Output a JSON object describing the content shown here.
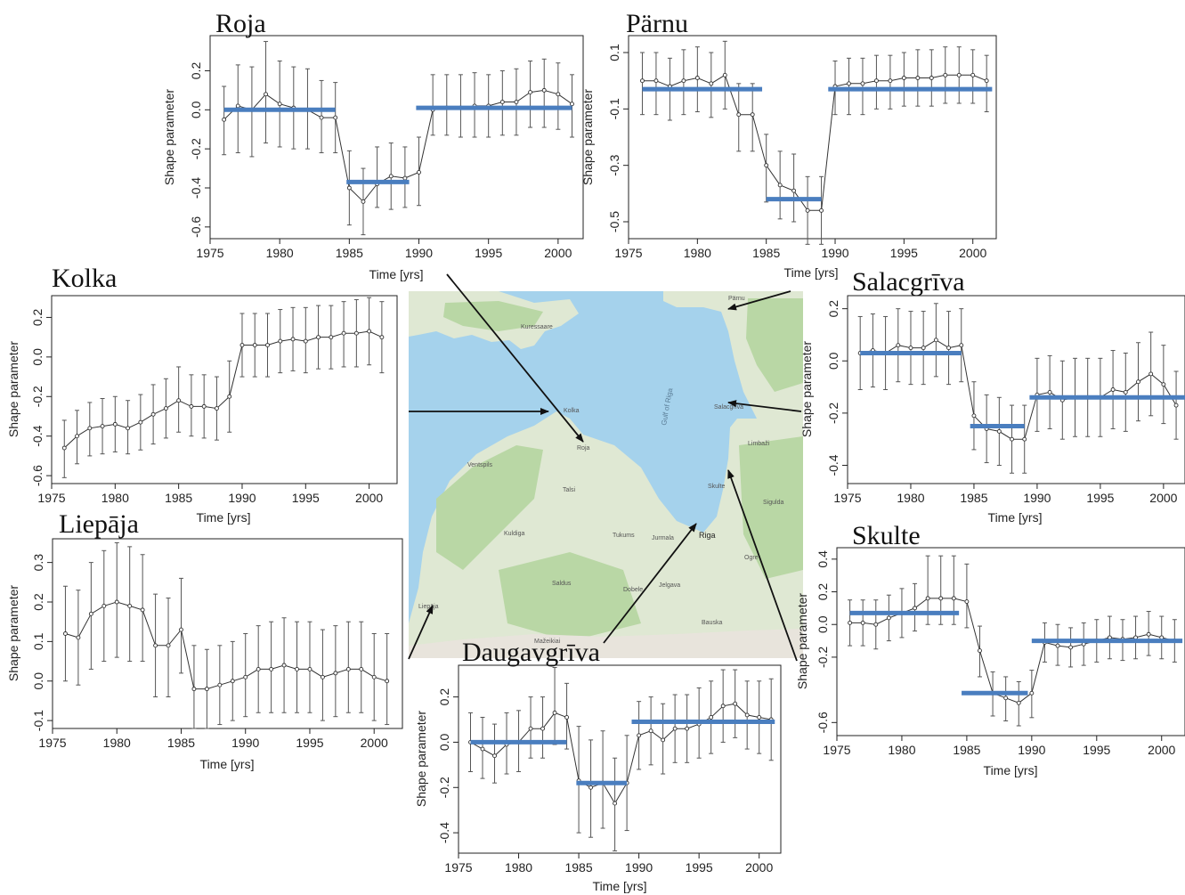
{
  "colors": {
    "segment": "#4a7ebf",
    "line": "#333333",
    "axis": "#222222",
    "sea": "#a5d2ec",
    "land": "#dfe8d3",
    "forest": "#b9d7a5"
  },
  "panel_xlabel": "Time [yrs]",
  "panel_ylabel": "Shape parameter",
  "map": {
    "labels": {
      "gulf": "Gulf of Riga",
      "riga": "Riga",
      "liepaja": "Liepāja",
      "ventspils": "Ventspils",
      "kuressaare": "Kuressaare",
      "jurmala": "Jurmala",
      "jelgava": "Jelgava",
      "saldus": "Saldus",
      "kuldiga": "Kuldiga",
      "talsi": "Talsi",
      "mazeikiai": "Mažeikiai",
      "bauska": "Bauska",
      "sigulda": "Sigulda",
      "limbazi": "Limbaži",
      "ogre": "Ogre",
      "dobele": "Dobele",
      "tukums": "Tukums",
      "kolka": "Kolka",
      "roja": "Roja",
      "salacgriva": "Salacgrīva",
      "skulte": "Skulte",
      "parnu": "Pärnu"
    }
  },
  "chart_data": [
    {
      "id": "roja",
      "type": "line",
      "title": "Roja",
      "xlabel": "Time [yrs]",
      "ylabel": "Shape parameter",
      "xlim": [
        1975,
        2001.8
      ],
      "ylim": [
        -0.66,
        0.38
      ],
      "xticks": [
        1975,
        1980,
        1985,
        1990,
        1995,
        2000
      ],
      "yticks": [
        -0.6,
        -0.4,
        -0.2,
        0.0,
        0.2
      ],
      "ytick_labels": [
        "-0.6",
        "-0.4",
        "-0.2",
        "0.0",
        "0.2"
      ],
      "x": [
        1976,
        1977,
        1978,
        1979,
        1980,
        1981,
        1982,
        1983,
        1984,
        1985,
        1986,
        1987,
        1988,
        1989,
        1990,
        1991,
        1992,
        1993,
        1994,
        1995,
        1996,
        1997,
        1998,
        1999,
        2000,
        2001
      ],
      "y": [
        -0.05,
        0.02,
        0.0,
        0.08,
        0.03,
        0.01,
        0.0,
        -0.04,
        -0.04,
        -0.4,
        -0.47,
        -0.38,
        -0.34,
        -0.35,
        -0.32,
        0.0,
        0.01,
        0.01,
        0.02,
        0.02,
        0.04,
        0.04,
        0.09,
        0.1,
        0.08,
        0.03
      ],
      "lower": [
        -0.23,
        -0.22,
        -0.24,
        -0.17,
        -0.19,
        -0.2,
        -0.2,
        -0.22,
        -0.22,
        -0.59,
        -0.64,
        -0.5,
        -0.51,
        -0.5,
        -0.49,
        -0.13,
        -0.13,
        -0.14,
        -0.14,
        -0.14,
        -0.13,
        -0.13,
        -0.09,
        -0.09,
        -0.1,
        -0.14
      ],
      "upper": [
        0.12,
        0.23,
        0.22,
        0.35,
        0.25,
        0.22,
        0.21,
        0.15,
        0.14,
        -0.21,
        -0.3,
        -0.19,
        -0.17,
        -0.19,
        -0.14,
        0.18,
        0.18,
        0.18,
        0.19,
        0.18,
        0.2,
        0.21,
        0.25,
        0.26,
        0.24,
        0.18
      ],
      "segments": [
        {
          "x0": 1976,
          "x1": 1984,
          "y": 0.0
        },
        {
          "x0": 1984.8,
          "x1": 1989.3,
          "y": -0.37
        },
        {
          "x0": 1989.8,
          "x1": 2001,
          "y": 0.01
        }
      ]
    },
    {
      "id": "parnu",
      "type": "line",
      "title": "Pärnu",
      "xlabel": "Time [yrs]",
      "ylabel": "Shape parameter",
      "xlim": [
        1975,
        2001.7
      ],
      "ylim": [
        -0.56,
        0.16
      ],
      "xticks": [
        1975,
        1980,
        1985,
        1990,
        1995,
        2000
      ],
      "yticks": [
        -0.5,
        -0.3,
        -0.1,
        0.1
      ],
      "ytick_labels": [
        "-0.5",
        "-0.3",
        "-0.1",
        "0.1"
      ],
      "x": [
        1976,
        1977,
        1978,
        1979,
        1980,
        1981,
        1982,
        1983,
        1984,
        1985,
        1986,
        1987,
        1988,
        1989,
        1990,
        1991,
        1992,
        1993,
        1994,
        1995,
        1996,
        1997,
        1998,
        1999,
        2000,
        2001
      ],
      "y": [
        0.0,
        0.0,
        -0.02,
        0.0,
        0.01,
        -0.01,
        0.02,
        -0.12,
        -0.12,
        -0.3,
        -0.37,
        -0.39,
        -0.46,
        -0.46,
        -0.02,
        -0.01,
        -0.01,
        0.0,
        0.0,
        0.01,
        0.01,
        0.01,
        0.02,
        0.02,
        0.02,
        0.0
      ],
      "lower": [
        -0.12,
        -0.12,
        -0.14,
        -0.12,
        -0.11,
        -0.13,
        -0.1,
        -0.25,
        -0.25,
        -0.43,
        -0.49,
        -0.5,
        -0.58,
        -0.58,
        -0.12,
        -0.12,
        -0.12,
        -0.1,
        -0.1,
        -0.09,
        -0.09,
        -0.09,
        -0.08,
        -0.08,
        -0.08,
        -0.11
      ],
      "upper": [
        0.1,
        0.1,
        0.08,
        0.11,
        0.12,
        0.1,
        0.14,
        -0.01,
        -0.01,
        -0.19,
        -0.25,
        -0.26,
        -0.34,
        -0.34,
        0.07,
        0.08,
        0.08,
        0.09,
        0.09,
        0.1,
        0.11,
        0.11,
        0.12,
        0.12,
        0.11,
        0.09
      ],
      "segments": [
        {
          "x0": 1976,
          "x1": 1984.7,
          "y": -0.03
        },
        {
          "x0": 1985,
          "x1": 1989,
          "y": -0.42
        },
        {
          "x0": 1989.5,
          "x1": 2001.4,
          "y": -0.03
        }
      ]
    },
    {
      "id": "kolka",
      "type": "line",
      "title": "Kolka",
      "xlabel": "Time [yrs]",
      "ylabel": "Shape parameter",
      "xlim": [
        1975,
        2002.2
      ],
      "ylim": [
        -0.64,
        0.31
      ],
      "xticks": [
        1975,
        1980,
        1985,
        1990,
        1995,
        2000
      ],
      "yticks": [
        -0.6,
        -0.4,
        -0.2,
        0.0,
        0.2
      ],
      "ytick_labels": [
        "-0.6",
        "-0.4",
        "-0.2",
        "0.0",
        "0.2"
      ],
      "x": [
        1976,
        1977,
        1978,
        1979,
        1980,
        1981,
        1982,
        1983,
        1984,
        1985,
        1986,
        1987,
        1988,
        1989,
        1990,
        1991,
        1992,
        1993,
        1994,
        1995,
        1996,
        1997,
        1998,
        1999,
        2000,
        2001
      ],
      "y": [
        -0.46,
        -0.4,
        -0.36,
        -0.35,
        -0.34,
        -0.36,
        -0.33,
        -0.29,
        -0.26,
        -0.22,
        -0.25,
        -0.25,
        -0.26,
        -0.2,
        0.06,
        0.06,
        0.06,
        0.08,
        0.09,
        0.08,
        0.1,
        0.1,
        0.12,
        0.12,
        0.13,
        0.1
      ],
      "lower": [
        -0.61,
        -0.54,
        -0.5,
        -0.49,
        -0.48,
        -0.49,
        -0.47,
        -0.44,
        -0.41,
        -0.38,
        -0.4,
        -0.41,
        -0.42,
        -0.38,
        -0.1,
        -0.1,
        -0.1,
        -0.08,
        -0.07,
        -0.08,
        -0.06,
        -0.06,
        -0.05,
        -0.05,
        -0.04,
        -0.08
      ],
      "upper": [
        -0.32,
        -0.27,
        -0.23,
        -0.21,
        -0.2,
        -0.22,
        -0.19,
        -0.14,
        -0.11,
        -0.05,
        -0.09,
        -0.09,
        -0.1,
        -0.02,
        0.22,
        0.22,
        0.22,
        0.24,
        0.25,
        0.25,
        0.26,
        0.26,
        0.28,
        0.29,
        0.3,
        0.28
      ],
      "segments": []
    },
    {
      "id": "salacgriva",
      "type": "line",
      "title": "Salacgrīva",
      "xlabel": "Time [yrs]",
      "ylabel": "Shape parameter",
      "xlim": [
        1975,
        2001.7
      ],
      "ylim": [
        -0.47,
        0.25
      ],
      "xticks": [
        1975,
        1980,
        1985,
        1990,
        1995,
        2000
      ],
      "yticks": [
        -0.4,
        -0.2,
        0.0,
        0.2
      ],
      "ytick_labels": [
        "-0.4",
        "-0.2",
        "0.0",
        "0.2"
      ],
      "x": [
        1976,
        1977,
        1978,
        1979,
        1980,
        1981,
        1982,
        1983,
        1984,
        1985,
        1986,
        1987,
        1988,
        1989,
        1990,
        1991,
        1992,
        1993,
        1994,
        1995,
        1996,
        1997,
        1998,
        1999,
        2000,
        2001
      ],
      "y": [
        0.03,
        0.04,
        0.03,
        0.06,
        0.05,
        0.05,
        0.08,
        0.05,
        0.06,
        -0.21,
        -0.26,
        -0.27,
        -0.3,
        -0.3,
        -0.13,
        -0.12,
        -0.15,
        -0.14,
        -0.14,
        -0.14,
        -0.11,
        -0.12,
        -0.08,
        -0.05,
        -0.09,
        -0.17
      ],
      "lower": [
        -0.11,
        -0.1,
        -0.11,
        -0.08,
        -0.09,
        -0.09,
        -0.06,
        -0.09,
        -0.08,
        -0.34,
        -0.39,
        -0.4,
        -0.43,
        -0.43,
        -0.27,
        -0.26,
        -0.3,
        -0.29,
        -0.29,
        -0.29,
        -0.26,
        -0.27,
        -0.23,
        -0.21,
        -0.24,
        -0.3
      ],
      "upper": [
        0.17,
        0.18,
        0.17,
        0.2,
        0.19,
        0.19,
        0.22,
        0.19,
        0.2,
        -0.08,
        -0.13,
        -0.14,
        -0.17,
        -0.17,
        0.01,
        0.02,
        0.0,
        0.01,
        0.01,
        0.01,
        0.04,
        0.03,
        0.07,
        0.11,
        0.06,
        -0.04
      ],
      "segments": [
        {
          "x0": 1976,
          "x1": 1984,
          "y": 0.03
        },
        {
          "x0": 1984.7,
          "x1": 1989,
          "y": -0.25
        },
        {
          "x0": 1989.4,
          "x1": 2001.7,
          "y": -0.14
        }
      ]
    },
    {
      "id": "liepaja",
      "type": "line",
      "title": "Liepāja",
      "xlabel": "Time [yrs]",
      "ylabel": "Shape parameter",
      "xlim": [
        1975,
        2002.2
      ],
      "ylim": [
        -0.12,
        0.36
      ],
      "xticks": [
        1975,
        1980,
        1985,
        1990,
        1995,
        2000
      ],
      "yticks": [
        -0.1,
        0.0,
        0.1,
        0.2,
        0.3
      ],
      "ytick_labels": [
        "-0.1",
        "0.0",
        "0.1",
        "0.2",
        "0.3"
      ],
      "x": [
        1976,
        1977,
        1978,
        1979,
        1980,
        1981,
        1982,
        1983,
        1984,
        1985,
        1986,
        1987,
        1988,
        1989,
        1990,
        1991,
        1992,
        1993,
        1994,
        1995,
        1996,
        1997,
        1998,
        1999,
        2000,
        2001
      ],
      "y": [
        0.12,
        0.11,
        0.17,
        0.19,
        0.2,
        0.19,
        0.18,
        0.09,
        0.09,
        0.13,
        -0.02,
        -0.02,
        -0.01,
        0.0,
        0.01,
        0.03,
        0.03,
        0.04,
        0.03,
        0.03,
        0.01,
        0.02,
        0.03,
        0.03,
        0.01,
        0.0
      ],
      "lower": [
        0.0,
        -0.01,
        0.03,
        0.05,
        0.06,
        0.05,
        0.05,
        -0.04,
        -0.04,
        0.02,
        -0.12,
        -0.12,
        -0.11,
        -0.1,
        -0.09,
        -0.08,
        -0.08,
        -0.08,
        -0.08,
        -0.08,
        -0.1,
        -0.09,
        -0.08,
        -0.08,
        -0.1,
        -0.11
      ],
      "upper": [
        0.24,
        0.23,
        0.3,
        0.33,
        0.35,
        0.34,
        0.32,
        0.22,
        0.21,
        0.26,
        0.09,
        0.08,
        0.09,
        0.1,
        0.12,
        0.14,
        0.15,
        0.16,
        0.15,
        0.15,
        0.13,
        0.14,
        0.15,
        0.15,
        0.12,
        0.12
      ],
      "segments": []
    },
    {
      "id": "skulte",
      "type": "line",
      "title": "Skulte",
      "xlabel": "Time [yrs]",
      "ylabel": "Shape parameter",
      "xlim": [
        1975,
        2001.8
      ],
      "ylim": [
        -0.68,
        0.47
      ],
      "xticks": [
        1975,
        1980,
        1985,
        1990,
        1995,
        2000
      ],
      "yticks": [
        -0.6,
        -0.2,
        0.0,
        0.2,
        0.4
      ],
      "ytick_labels": [
        "-0.6",
        "-0.2",
        "0.0",
        "0.2",
        "0.4"
      ],
      "x": [
        1976,
        1977,
        1978,
        1979,
        1980,
        1981,
        1982,
        1983,
        1984,
        1985,
        1986,
        1987,
        1988,
        1989,
        1990,
        1991,
        1992,
        1993,
        1994,
        1995,
        1996,
        1997,
        1998,
        1999,
        2000,
        2001
      ],
      "y": [
        0.01,
        0.01,
        0.0,
        0.04,
        0.07,
        0.1,
        0.16,
        0.16,
        0.16,
        0.14,
        -0.16,
        -0.42,
        -0.45,
        -0.48,
        -0.42,
        -0.11,
        -0.13,
        -0.14,
        -0.12,
        -0.1,
        -0.08,
        -0.09,
        -0.08,
        -0.06,
        -0.08,
        -0.1
      ],
      "lower": [
        -0.13,
        -0.13,
        -0.15,
        -0.1,
        -0.08,
        -0.04,
        0.0,
        0.0,
        0.0,
        -0.02,
        -0.32,
        -0.56,
        -0.59,
        -0.62,
        -0.57,
        -0.23,
        -0.25,
        -0.26,
        -0.25,
        -0.23,
        -0.21,
        -0.22,
        -0.21,
        -0.19,
        -0.21,
        -0.23
      ],
      "upper": [
        0.15,
        0.15,
        0.15,
        0.18,
        0.22,
        0.25,
        0.42,
        0.42,
        0.42,
        0.37,
        -0.01,
        -0.29,
        -0.32,
        -0.35,
        -0.28,
        0.01,
        0.0,
        -0.02,
        0.01,
        0.03,
        0.05,
        0.03,
        0.05,
        0.08,
        0.05,
        0.03
      ],
      "segments": [
        {
          "x0": 1976,
          "x1": 1984.4,
          "y": 0.07
        },
        {
          "x0": 1984.6,
          "x1": 1989.7,
          "y": -0.42
        },
        {
          "x0": 1990,
          "x1": 2001.6,
          "y": -0.1
        }
      ]
    },
    {
      "id": "daugavgriva",
      "type": "line",
      "title": "Daugavgrīva",
      "xlabel": "Time [yrs]",
      "ylabel": "Shape parameter",
      "xlim": [
        1975,
        2001.8
      ],
      "ylim": [
        -0.49,
        0.34
      ],
      "xticks": [
        1975,
        1980,
        1985,
        1990,
        1995,
        2000
      ],
      "yticks": [
        -0.4,
        -0.2,
        0.0,
        0.2
      ],
      "ytick_labels": [
        "-0.4",
        "-0.2",
        "0.0",
        "0.2"
      ],
      "x": [
        1976,
        1977,
        1978,
        1979,
        1980,
        1981,
        1982,
        1983,
        1984,
        1985,
        1986,
        1987,
        1988,
        1989,
        1990,
        1991,
        1992,
        1993,
        1994,
        1995,
        1996,
        1997,
        1998,
        1999,
        2000,
        2001
      ],
      "y": [
        0.0,
        -0.03,
        -0.06,
        -0.01,
        0.0,
        0.06,
        0.06,
        0.13,
        0.11,
        -0.17,
        -0.2,
        -0.18,
        -0.27,
        -0.18,
        0.03,
        0.05,
        0.01,
        0.06,
        0.06,
        0.08,
        0.11,
        0.16,
        0.17,
        0.12,
        0.11,
        0.1
      ],
      "lower": [
        -0.13,
        -0.16,
        -0.18,
        -0.14,
        -0.13,
        -0.07,
        -0.07,
        -0.01,
        -0.03,
        -0.4,
        -0.42,
        -0.38,
        -0.48,
        -0.39,
        -0.12,
        -0.1,
        -0.14,
        -0.09,
        -0.09,
        -0.07,
        -0.05,
        0.0,
        0.02,
        -0.03,
        -0.05,
        -0.08
      ],
      "upper": [
        0.13,
        0.11,
        0.08,
        0.13,
        0.14,
        0.2,
        0.2,
        0.33,
        0.26,
        0.07,
        0.01,
        0.05,
        -0.07,
        0.03,
        0.18,
        0.2,
        0.17,
        0.21,
        0.21,
        0.24,
        0.27,
        0.32,
        0.32,
        0.27,
        0.27,
        0.28
      ],
      "segments": [
        {
          "x0": 1976,
          "x1": 1984,
          "y": 0.0
        },
        {
          "x0": 1984.8,
          "x1": 1989,
          "y": -0.18
        },
        {
          "x0": 1989.4,
          "x1": 2001.3,
          "y": 0.09
        }
      ]
    }
  ]
}
